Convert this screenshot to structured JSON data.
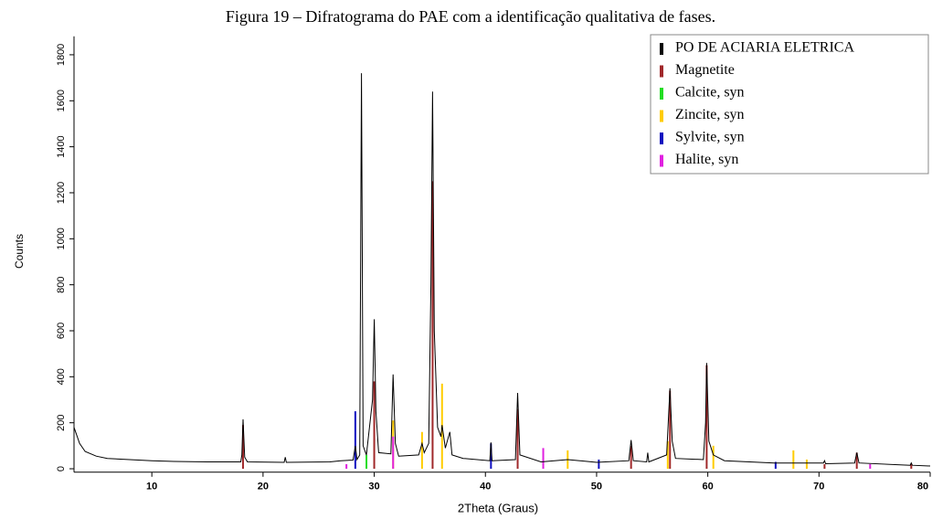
{
  "chart_data": {
    "type": "line",
    "title": "Figura 19 – Difratograma do PAE com a identificação qualitativa de fases.",
    "xlabel": "2Theta (Graus)",
    "ylabel": "Counts",
    "xlim": [
      3,
      80
    ],
    "ylim": [
      -15,
      1880
    ],
    "xticks": [
      10,
      20,
      30,
      40,
      50,
      60,
      70,
      80
    ],
    "yticks": [
      0,
      200,
      400,
      600,
      800,
      1000,
      1200,
      1400,
      1600,
      1800
    ],
    "legend": "upper right",
    "series": [
      {
        "name": "PO DE ACIARIA ELETRICA",
        "color": "#000000",
        "style": "line",
        "x": [
          3,
          3.5,
          4,
          5,
          6,
          8,
          10,
          12,
          15,
          18,
          18.1,
          18.2,
          18.35,
          18.6,
          21.9,
          22.0,
          22.1,
          26,
          27,
          28.1,
          28.3,
          28.45,
          28.7,
          28.85,
          29.0,
          29.3,
          29.85,
          30.0,
          30.15,
          30.4,
          31.5,
          31.7,
          31.9,
          32.2,
          34.0,
          34.3,
          34.5,
          34.9,
          35.1,
          35.25,
          35.4,
          35.7,
          36.0,
          36.1,
          36.4,
          36.8,
          37.0,
          38,
          40.4,
          40.5,
          40.6,
          42.7,
          42.9,
          43.1,
          45,
          47.4,
          50,
          52.9,
          53.1,
          53.3,
          54.5,
          54.6,
          54.7,
          56.3,
          56.6,
          56.8,
          57.1,
          59.6,
          59.8,
          59.9,
          60.1,
          60.5,
          61.5,
          66,
          70.4,
          70.5,
          70.6,
          73.2,
          73.4,
          73.6,
          78.2,
          78.3,
          78.4,
          80
        ],
        "values": [
          180,
          110,
          75,
          55,
          45,
          40,
          35,
          32,
          30,
          30,
          60,
          215,
          50,
          30,
          28,
          50,
          28,
          30,
          35,
          38,
          100,
          40,
          60,
          1720,
          100,
          60,
          300,
          650,
          250,
          70,
          65,
          410,
          110,
          55,
          60,
          110,
          70,
          110,
          800,
          1640,
          600,
          180,
          140,
          190,
          90,
          160,
          60,
          45,
          35,
          115,
          35,
          40,
          330,
          60,
          30,
          40,
          28,
          35,
          125,
          35,
          30,
          70,
          30,
          60,
          350,
          120,
          45,
          40,
          200,
          460,
          120,
          60,
          35,
          25,
          25,
          35,
          22,
          25,
          70,
          25,
          15,
          25,
          15,
          12
        ]
      },
      {
        "name": "Magnetite",
        "color": "#a0282a",
        "style": "stick",
        "x": [
          18.2,
          30.0,
          35.25,
          42.9,
          53.1,
          56.6,
          59.9,
          70.5,
          73.4,
          78.3
        ],
        "values": [
          190,
          380,
          1250,
          260,
          100,
          340,
          450,
          20,
          70,
          20
        ]
      },
      {
        "name": "Calcite, syn",
        "color": "#22dd22",
        "style": "stick",
        "x": [
          29.3
        ],
        "values": [
          60
        ]
      },
      {
        "name": "Zincite, syn",
        "color": "#ffcc00",
        "style": "stick",
        "x": [
          31.7,
          34.3,
          36.1,
          47.4,
          56.4,
          60.5,
          67.7,
          68.9
        ],
        "values": [
          210,
          160,
          370,
          80,
          120,
          100,
          80,
          40
        ]
      },
      {
        "name": "Sylvite, syn",
        "color": "#1010c0",
        "style": "stick",
        "x": [
          28.3,
          40.5,
          50.2,
          66.1
        ],
        "values": [
          250,
          110,
          40,
          30
        ]
      },
      {
        "name": "Halite, syn",
        "color": "#e020e0",
        "style": "stick",
        "x": [
          27.5,
          31.7,
          45.2,
          74.6
        ],
        "values": [
          20,
          140,
          90,
          20
        ]
      }
    ]
  }
}
